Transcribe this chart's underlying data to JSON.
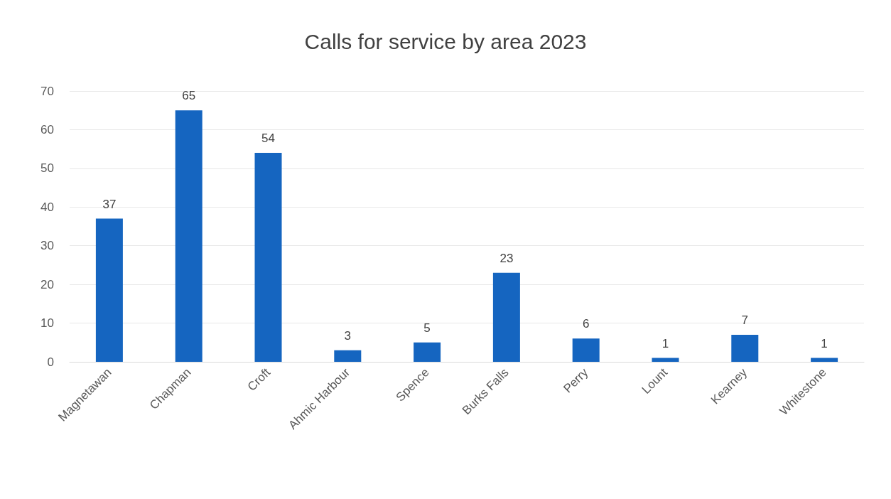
{
  "chart_data": {
    "type": "bar",
    "title": "Calls for service by area 2023",
    "categories": [
      "Magnetawan",
      "Chapman",
      "Croft",
      "Ahmic Harbour",
      "Spence",
      "Burks Falls",
      "Perry",
      "Lount",
      "Kearney",
      "Whitestone"
    ],
    "values": [
      37,
      65,
      54,
      3,
      5,
      23,
      6,
      1,
      7,
      1
    ],
    "color": "#1565c0",
    "ylim": [
      0,
      70
    ],
    "yticks": [
      0,
      10,
      20,
      30,
      40,
      50,
      60,
      70
    ],
    "grid": "y",
    "data_labels": true
  }
}
